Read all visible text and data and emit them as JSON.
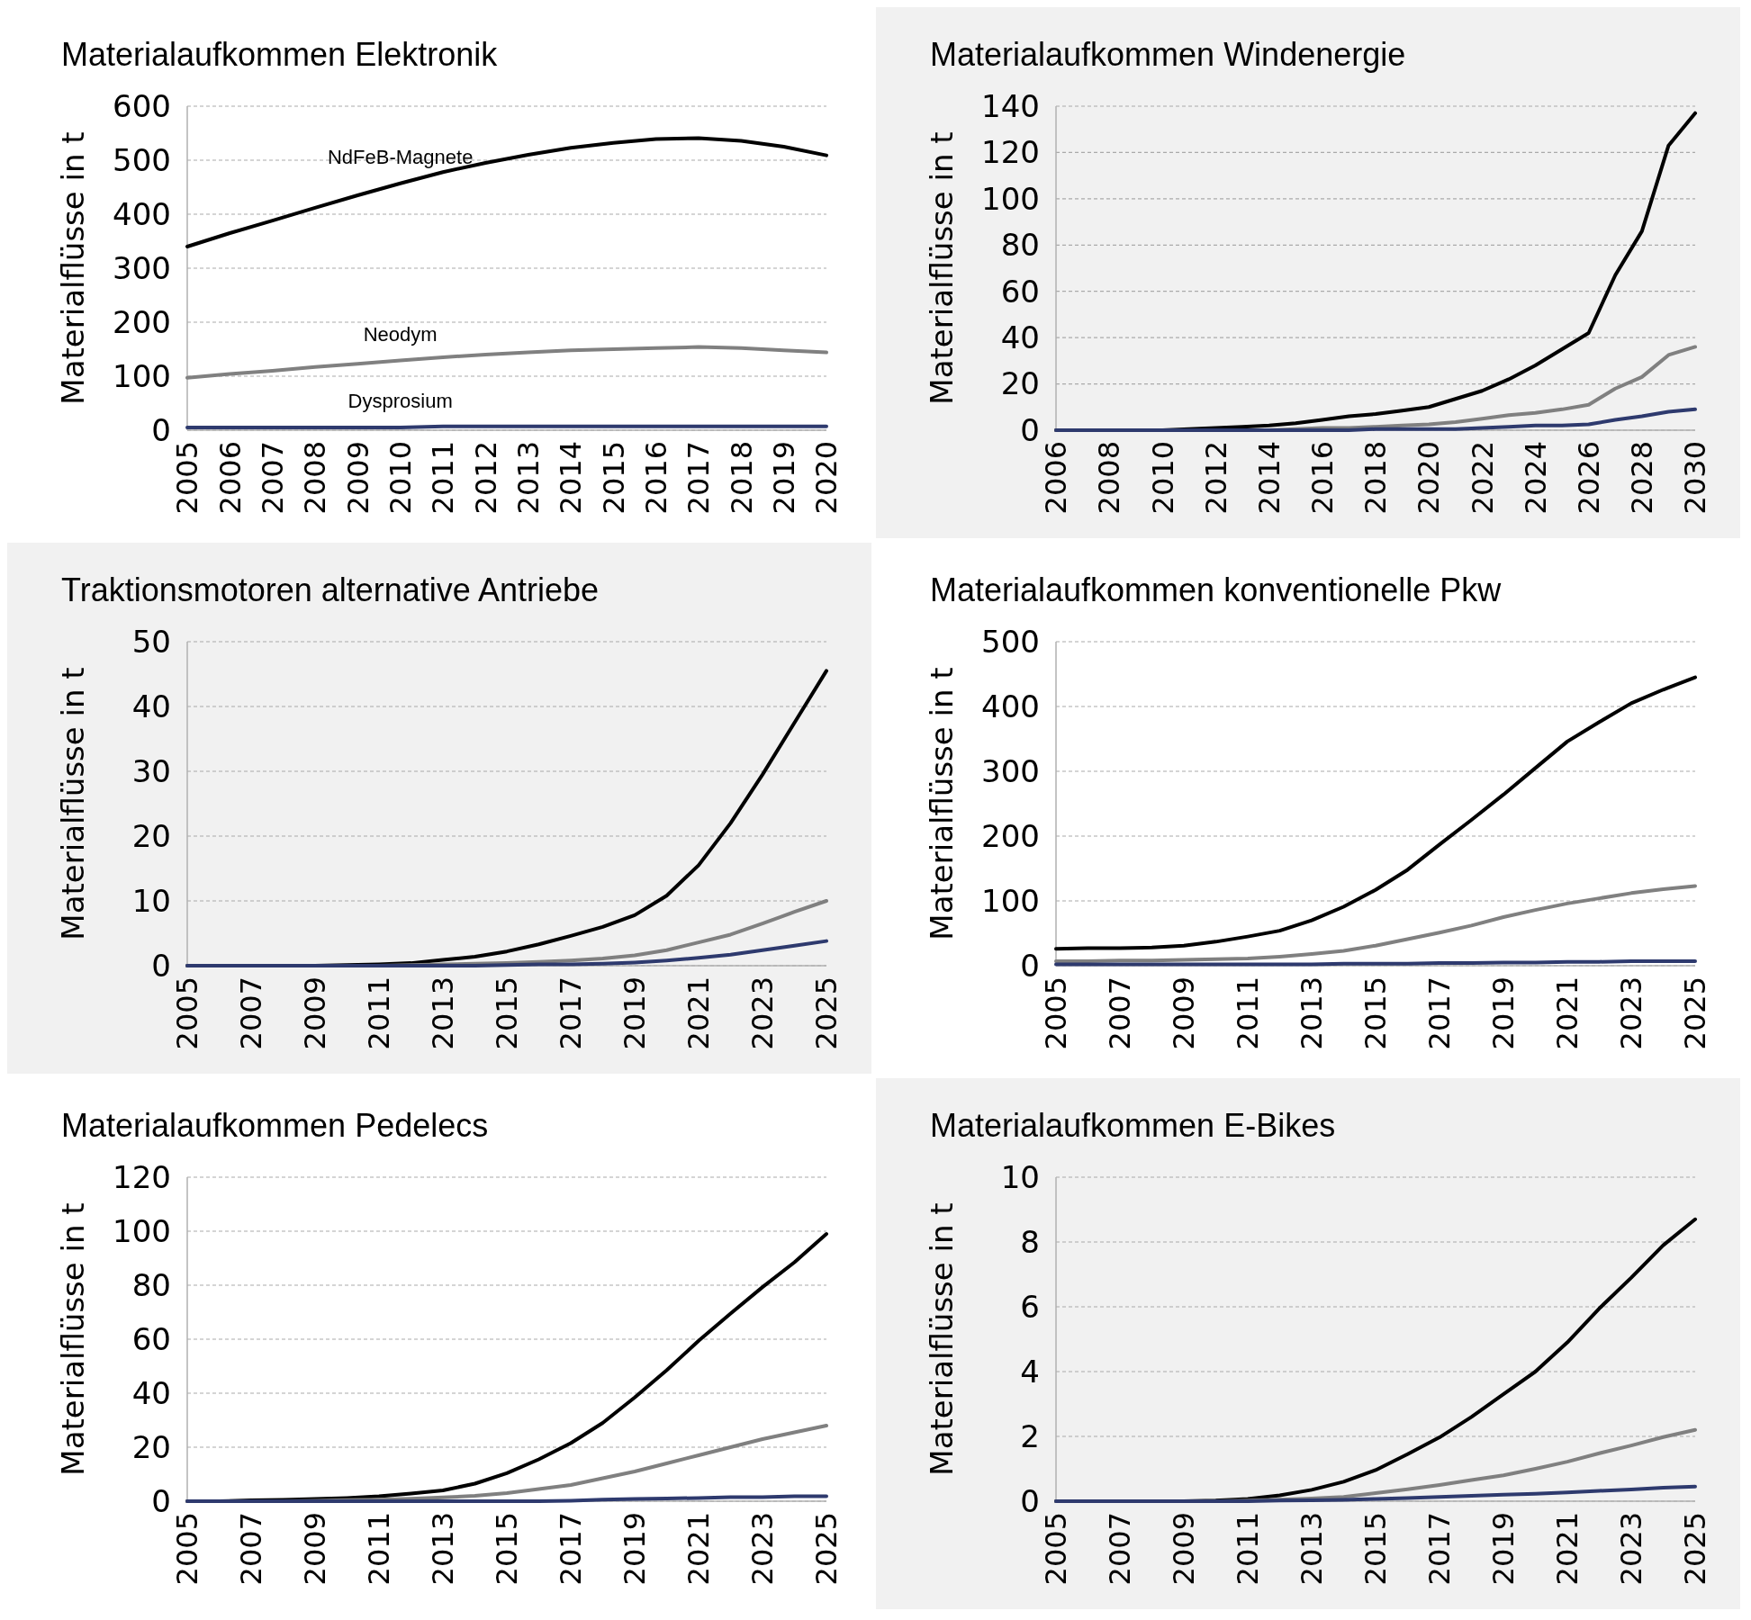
{
  "chart_data": [
    {
      "type": "line",
      "title": "Materialaufkommen Elektronik",
      "ylabel": "Materialflüsse in t",
      "x": [
        2005,
        2006,
        2007,
        2008,
        2009,
        2010,
        2011,
        2012,
        2013,
        2014,
        2015,
        2016,
        2017,
        2018,
        2019,
        2020
      ],
      "xlim": [
        2005,
        2020
      ],
      "xticks": [
        2005,
        2006,
        2007,
        2008,
        2009,
        2010,
        2011,
        2012,
        2013,
        2014,
        2015,
        2016,
        2017,
        2018,
        2019,
        2020
      ],
      "ylim": [
        0,
        600
      ],
      "yticks": [
        0,
        100,
        200,
        300,
        400,
        500,
        600
      ],
      "grid": "y",
      "series": [
        {
          "name": "NdFeB-Magnete",
          "color": "#000000",
          "values": [
            340,
            365,
            388,
            412,
            435,
            457,
            478,
            495,
            510,
            523,
            532,
            539,
            541,
            536,
            525,
            509
          ]
        },
        {
          "name": "Neodym",
          "color": "#808080",
          "values": [
            97,
            104,
            110,
            117,
            123,
            129,
            135,
            140,
            144,
            148,
            150,
            152,
            154,
            152,
            148,
            144
          ]
        },
        {
          "name": "Dysprosium",
          "color": "#2e3a6e",
          "values": [
            5,
            5,
            5,
            5,
            5,
            5,
            7,
            7,
            7,
            7,
            7,
            7,
            7,
            7,
            7,
            7
          ]
        }
      ]
    },
    {
      "type": "line",
      "title": "Materialaufkommen Windenergie",
      "ylabel": "Materialflüsse in t",
      "x": [
        2006,
        2007,
        2008,
        2009,
        2010,
        2011,
        2012,
        2013,
        2014,
        2015,
        2016,
        2017,
        2018,
        2019,
        2020,
        2021,
        2022,
        2023,
        2024,
        2025,
        2026,
        2027,
        2028,
        2029,
        2030
      ],
      "xlim": [
        2006,
        2030
      ],
      "xticks": [
        2006,
        2008,
        2010,
        2012,
        2014,
        2016,
        2018,
        2020,
        2022,
        2024,
        2026,
        2028,
        2030
      ],
      "ylim": [
        0,
        140
      ],
      "yticks": [
        0,
        20,
        40,
        60,
        80,
        100,
        120,
        140
      ],
      "grid": "y",
      "series": [
        {
          "color": "#000000",
          "values": [
            0,
            0,
            0,
            0,
            0,
            0.5,
            1,
            1.5,
            2,
            3,
            4.5,
            6,
            7,
            8.5,
            10,
            13.5,
            17,
            22,
            28,
            35,
            42,
            67,
            86,
            123,
            137
          ]
        },
        {
          "color": "#808080",
          "values": [
            0,
            0,
            0,
            0,
            0,
            0,
            0,
            0,
            0,
            0.5,
            1,
            1,
            1.5,
            2,
            2.5,
            3.5,
            5,
            6.5,
            7.5,
            9,
            11,
            18,
            23,
            32.5,
            36
          ]
        },
        {
          "color": "#2e3a6e",
          "values": [
            0,
            0,
            0,
            0,
            0,
            0,
            0,
            0,
            0,
            0,
            0,
            0,
            0.5,
            0.5,
            0.5,
            0.5,
            1,
            1.5,
            2,
            2,
            2.5,
            4.5,
            6,
            8,
            9
          ]
        }
      ]
    },
    {
      "type": "line",
      "title": "Traktionsmotoren alternative Antriebe",
      "ylabel": "Materialflüsse in t",
      "x": [
        2005,
        2006,
        2007,
        2008,
        2009,
        2010,
        2011,
        2012,
        2013,
        2014,
        2015,
        2016,
        2017,
        2018,
        2019,
        2020,
        2021,
        2022,
        2023,
        2024,
        2025
      ],
      "xlim": [
        2005,
        2025
      ],
      "xticks": [
        2005,
        2007,
        2009,
        2011,
        2013,
        2015,
        2017,
        2019,
        2021,
        2023,
        2025
      ],
      "ylim": [
        0,
        50
      ],
      "yticks": [
        0,
        10,
        20,
        30,
        40,
        50
      ],
      "grid": "y",
      "series": [
        {
          "color": "#000000",
          "values": [
            0,
            0,
            0,
            0,
            0,
            0.1,
            0.2,
            0.4,
            0.9,
            1.4,
            2.2,
            3.3,
            4.6,
            6,
            7.8,
            10.8,
            15.5,
            22,
            29.5,
            37.5,
            45.5
          ]
        },
        {
          "color": "#808080",
          "values": [
            0,
            0,
            0,
            0,
            0,
            0,
            0,
            0.1,
            0.2,
            0.3,
            0.4,
            0.6,
            0.8,
            1.1,
            1.6,
            2.4,
            3.6,
            4.8,
            6.5,
            8.3,
            10
          ]
        },
        {
          "color": "#2e3a6e",
          "values": [
            0,
            0,
            0,
            0,
            0,
            0,
            0,
            0,
            0,
            0,
            0.1,
            0.2,
            0.2,
            0.3,
            0.5,
            0.8,
            1.2,
            1.7,
            2.4,
            3.1,
            3.8
          ]
        }
      ]
    },
    {
      "type": "line",
      "title": "Materialaufkommen konventionelle Pkw",
      "ylabel": "Materialflüsse in t",
      "x": [
        2005,
        2006,
        2007,
        2008,
        2009,
        2010,
        2011,
        2012,
        2013,
        2014,
        2015,
        2016,
        2017,
        2018,
        2019,
        2020,
        2021,
        2022,
        2023,
        2024,
        2025
      ],
      "xlim": [
        2005,
        2025
      ],
      "xticks": [
        2005,
        2007,
        2009,
        2011,
        2013,
        2015,
        2017,
        2019,
        2021,
        2023,
        2025
      ],
      "ylim": [
        0,
        500
      ],
      "yticks": [
        0,
        100,
        200,
        300,
        400,
        500
      ],
      "grid": "y",
      "series": [
        {
          "color": "#000000",
          "values": [
            26,
            27,
            27,
            28,
            31,
            37,
            45,
            54,
            70,
            91,
            117,
            148,
            187,
            225,
            264,
            305,
            346,
            376,
            405,
            426,
            445
          ]
        },
        {
          "color": "#808080",
          "values": [
            7,
            7,
            8,
            8,
            9,
            10,
            11,
            14,
            18,
            23,
            31,
            41,
            51,
            62,
            75,
            86,
            96,
            104,
            112,
            118,
            123
          ]
        },
        {
          "color": "#2e3a6e",
          "values": [
            2,
            2,
            2,
            2,
            2,
            2,
            2,
            2,
            2,
            3,
            3,
            3,
            4,
            4,
            5,
            5,
            6,
            6,
            7,
            7,
            7
          ]
        }
      ]
    },
    {
      "type": "line",
      "title": "Materialaufkommen Pedelecs",
      "ylabel": "Materialflüsse in t",
      "x": [
        2005,
        2006,
        2007,
        2008,
        2009,
        2010,
        2011,
        2012,
        2013,
        2014,
        2015,
        2016,
        2017,
        2018,
        2019,
        2020,
        2021,
        2022,
        2023,
        2024,
        2025
      ],
      "xlim": [
        2005,
        2025
      ],
      "xticks": [
        2005,
        2007,
        2009,
        2011,
        2013,
        2015,
        2017,
        2019,
        2021,
        2023,
        2025
      ],
      "ylim": [
        0,
        120
      ],
      "yticks": [
        0,
        20,
        40,
        60,
        80,
        100,
        120
      ],
      "grid": "y",
      "series": [
        {
          "color": "#000000",
          "values": [
            0,
            0,
            0.3,
            0.5,
            0.8,
            1.2,
            1.8,
            2.8,
            4,
            6.5,
            10.4,
            15.5,
            21.5,
            29,
            38.4,
            48.5,
            59.4,
            69.5,
            79.3,
            88.5,
            99
          ]
        },
        {
          "color": "#808080",
          "values": [
            0,
            0,
            0,
            0,
            0.2,
            0.4,
            0.6,
            0.9,
            1.4,
            2,
            3,
            4.5,
            6,
            8.5,
            11,
            14,
            17,
            20,
            23,
            25.5,
            28
          ]
        },
        {
          "color": "#2e3a6e",
          "values": [
            0,
            0,
            0,
            0,
            0,
            0,
            0,
            0,
            0,
            0,
            0,
            0,
            0.2,
            0.6,
            0.8,
            1,
            1.2,
            1.5,
            1.5,
            1.8,
            1.8
          ]
        }
      ]
    },
    {
      "type": "line",
      "title": "Materialaufkommen E-Bikes",
      "ylabel": "Materialflüsse in t",
      "x": [
        2005,
        2006,
        2007,
        2008,
        2009,
        2010,
        2011,
        2012,
        2013,
        2014,
        2015,
        2016,
        2017,
        2018,
        2019,
        2020,
        2021,
        2022,
        2023,
        2024,
        2025
      ],
      "xlim": [
        2005,
        2025
      ],
      "xticks": [
        2005,
        2007,
        2009,
        2011,
        2013,
        2015,
        2017,
        2019,
        2021,
        2023,
        2025
      ],
      "ylim": [
        0,
        10
      ],
      "yticks": [
        0,
        2,
        4,
        6,
        8,
        10
      ],
      "grid": "y",
      "series": [
        {
          "color": "#000000",
          "values": [
            0,
            0,
            0,
            0,
            0,
            0.02,
            0.07,
            0.18,
            0.35,
            0.6,
            0.96,
            1.45,
            1.97,
            2.6,
            3.3,
            4,
            4.9,
            5.95,
            6.9,
            7.9,
            8.7
          ]
        },
        {
          "color": "#808080",
          "values": [
            0,
            0,
            0,
            0,
            0,
            0,
            0.02,
            0.05,
            0.08,
            0.13,
            0.25,
            0.37,
            0.5,
            0.65,
            0.8,
            1,
            1.22,
            1.48,
            1.72,
            1.98,
            2.2
          ]
        },
        {
          "color": "#2e3a6e",
          "values": [
            0,
            0,
            0,
            0,
            0,
            0,
            0,
            0.02,
            0.03,
            0.04,
            0.07,
            0.1,
            0.13,
            0.17,
            0.2,
            0.23,
            0.27,
            0.32,
            0.36,
            0.42,
            0.45
          ]
        }
      ]
    }
  ]
}
